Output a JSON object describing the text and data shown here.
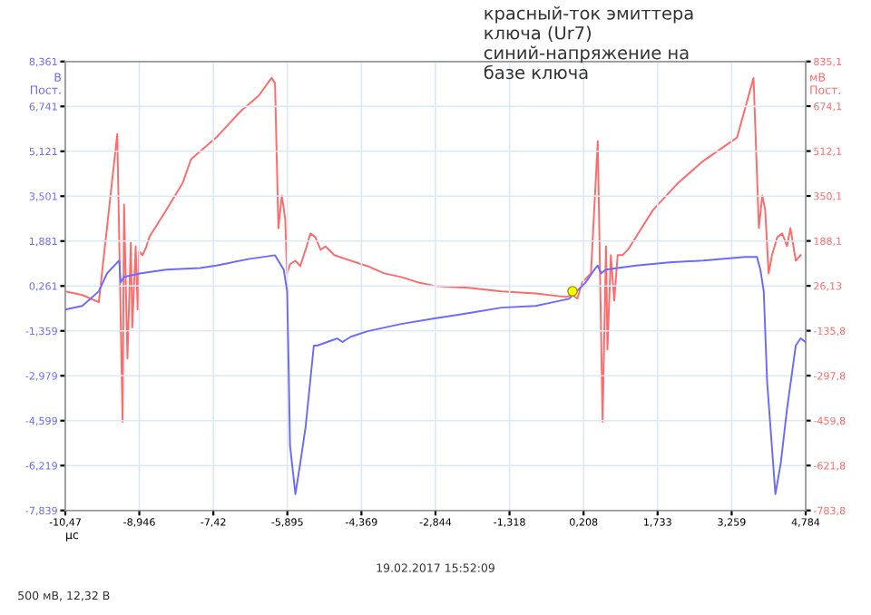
{
  "chart_data": {
    "type": "line",
    "xlabel": "µс",
    "ylabel": "В\nПост.",
    "y2label": "мВ\nПост.",
    "annotations": [
      "красный-ток эмиттера\nключа (Ur7)\nсиний-напряжение на\nбазе ключа",
      "19.02.2017 15:52:09",
      "500 мВ, 12,32 В"
    ],
    "xlim": [
      -10.47,
      4.784
    ],
    "xticks": [
      {
        "value": -10.47,
        "label": "-10,47"
      },
      {
        "value": -8.946,
        "label": "-8,946"
      },
      {
        "value": -7.42,
        "label": "-7,42"
      },
      {
        "value": -5.895,
        "label": "-5,895"
      },
      {
        "value": -4.369,
        "label": "-4,369"
      },
      {
        "value": -2.844,
        "label": "-2,844"
      },
      {
        "value": -1.318,
        "label": "-1,318"
      },
      {
        "value": 0.208,
        "label": "0,208"
      },
      {
        "value": 1.733,
        "label": "1,733"
      },
      {
        "value": 3.259,
        "label": "3,259"
      },
      {
        "value": 4.784,
        "label": "4,784"
      }
    ],
    "ylim": [
      -7.839,
      8.361
    ],
    "yticks": [
      {
        "value": -7.839,
        "label": "-7,839"
      },
      {
        "value": -6.219,
        "label": "-6,219"
      },
      {
        "value": -4.599,
        "label": "-4,599"
      },
      {
        "value": -2.979,
        "label": "-2,979"
      },
      {
        "value": -1.359,
        "label": "-1,359"
      },
      {
        "value": 0.261,
        "label": "0,261"
      },
      {
        "value": 1.881,
        "label": "1,881"
      },
      {
        "value": 3.501,
        "label": "3,501"
      },
      {
        "value": 5.121,
        "label": "5,121"
      },
      {
        "value": 6.741,
        "label": "6,741"
      },
      {
        "value": 8.361,
        "label": "8,361"
      }
    ],
    "y2lim": [
      -783.8,
      835.1
    ],
    "y2ticks": [
      {
        "value": -783.8,
        "label": "-783,8"
      },
      {
        "value": -621.8,
        "label": "-621,8"
      },
      {
        "value": -459.8,
        "label": "-459,8"
      },
      {
        "value": -297.8,
        "label": "-297,8"
      },
      {
        "value": -135.8,
        "label": "-135,8"
      },
      {
        "value": 26.13,
        "label": "26,13"
      },
      {
        "value": 188.1,
        "label": "188,1"
      },
      {
        "value": 350.1,
        "label": "350,1"
      },
      {
        "value": 512.1,
        "label": "512,1"
      },
      {
        "value": 674.1,
        "label": "674,1"
      },
      {
        "value": 835.1,
        "label": "835,1"
      }
    ],
    "grid": true,
    "series": [
      {
        "color": "#6a6aff",
        "axis": "y",
        "x": [
          -10.47,
          -10.12,
          -9.78,
          -9.61,
          -9.36,
          -9.33,
          -9.26,
          -8.91,
          -8.39,
          -7.7,
          -7.36,
          -6.67,
          -6.15,
          -5.97,
          -5.9,
          -5.87,
          -5.84,
          -5.73,
          -5.63,
          -5.52,
          -5.35,
          -5.28,
          -5.07,
          -4.87,
          -4.76,
          -4.59,
          -4.24,
          -3.55,
          -2.86,
          -2.17,
          -1.48,
          -0.78,
          -0.44,
          -0.09,
          0.25,
          0.43,
          0.5,
          0.57,
          0.67,
          1.29,
          1.98,
          2.67,
          3.54,
          3.78,
          3.85,
          3.92,
          3.99,
          4.16,
          4.27,
          4.4,
          4.58,
          4.68,
          4.78
        ],
        "values": [
          -0.59,
          -0.46,
          0.07,
          0.72,
          1.18,
          0.39,
          0.59,
          0.72,
          0.85,
          0.91,
          1.0,
          1.24,
          1.37,
          0.85,
          0.07,
          -2.55,
          -5.5,
          -7.25,
          -6.14,
          -4.83,
          -1.89,
          -1.89,
          -1.76,
          -1.63,
          -1.76,
          -1.57,
          -1.37,
          -1.11,
          -0.91,
          -0.72,
          -0.52,
          -0.46,
          -0.33,
          -0.2,
          0.39,
          0.85,
          1.0,
          0.72,
          0.85,
          1.0,
          1.11,
          1.18,
          1.31,
          1.31,
          0.85,
          0.07,
          -3.2,
          -7.25,
          -6.14,
          -4.18,
          -1.89,
          -1.63,
          -1.76
        ]
      },
      {
        "color": "#ff6a6a",
        "axis": "y2",
        "x": [
          -10.47,
          -10.12,
          -9.78,
          -9.4,
          -9.29,
          -9.26,
          -9.19,
          -9.12,
          -9.09,
          -9.02,
          -8.98,
          -8.95,
          -8.88,
          -8.81,
          -8.74,
          -8.39,
          -8.05,
          -7.88,
          -7.36,
          -6.84,
          -6.49,
          -6.22,
          -6.15,
          -6.08,
          -6.01,
          -5.94,
          -5.9,
          -5.84,
          -5.73,
          -5.63,
          -5.52,
          -5.42,
          -5.32,
          -5.21,
          -5.11,
          -4.93,
          -4.59,
          -4.24,
          -3.9,
          -3.55,
          -3.21,
          -2.86,
          -2.17,
          -1.48,
          -0.78,
          -0.16,
          -0.02,
          0.08,
          0.18,
          0.36,
          0.5,
          0.6,
          0.67,
          0.7,
          0.77,
          0.84,
          0.91,
          1.01,
          1.12,
          1.64,
          2.16,
          2.67,
          3.37,
          3.71,
          3.82,
          3.89,
          3.95,
          4.02,
          4.09,
          4.2,
          4.3,
          4.4,
          4.47,
          4.58,
          4.68
        ],
        "values": [
          6,
          -7,
          -33,
          574,
          -464,
          319,
          -236,
          182,
          -124,
          169,
          -59,
          150,
          137,
          163,
          202,
          300,
          398,
          483,
          561,
          659,
          711,
          776,
          757,
          234,
          352,
          267,
          71,
          104,
          117,
          97,
          156,
          215,
          202,
          156,
          169,
          137,
          117,
          97,
          71,
          58,
          39,
          26,
          19,
          6,
          -1,
          -14,
          -7,
          -20,
          39,
          71,
          548,
          -464,
          169,
          -203,
          137,
          -27,
          137,
          137,
          156,
          300,
          398,
          476,
          561,
          776,
          234,
          352,
          300,
          71,
          137,
          202,
          215,
          169,
          234,
          117,
          137
        ]
      },
      {
        "type": "scatter",
        "color": "#ffff00",
        "axis": "y",
        "marker": "circle",
        "x": [
          -0.02
        ],
        "values": [
          0.07
        ]
      }
    ]
  }
}
